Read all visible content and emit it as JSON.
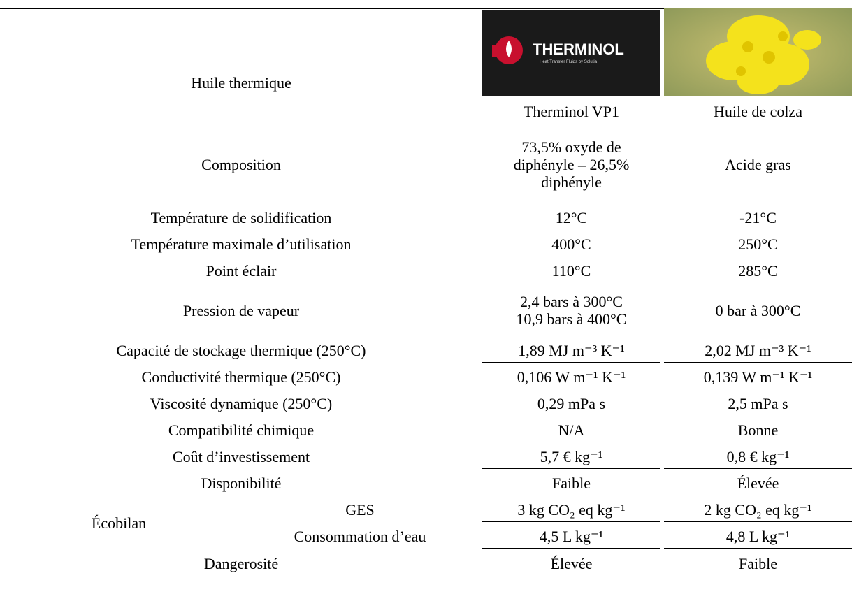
{
  "header": {
    "label": "Huile thermique",
    "logo": "THERMINOL",
    "logo_tagline": "Heat Transfer Fluids by Solutia",
    "columns": [
      "Therminol VP1",
      "Huile de colza"
    ]
  },
  "rows": [
    {
      "label": "Composition",
      "values": [
        [
          "73,5% oxyde de",
          "diphényle – 26,5%",
          "diphényle"
        ],
        [
          "Acide gras"
        ]
      ]
    },
    {
      "label": "Température de solidification",
      "values": [
        [
          "12°C"
        ],
        [
          "-21°C"
        ]
      ]
    },
    {
      "label": "Température maximale d’utilisation",
      "values": [
        [
          "400°C"
        ],
        [
          "250°C"
        ]
      ]
    },
    {
      "label": "Point éclair",
      "values": [
        [
          "110°C"
        ],
        [
          "285°C"
        ]
      ]
    },
    {
      "label": "Pression de vapeur",
      "values": [
        [
          "2,4 bars à 300°C",
          "10,9 bars à 400°C"
        ],
        [
          "0 bar à 300°C"
        ]
      ]
    },
    {
      "label": "Capacité de stockage thermique (250°C)",
      "values": [
        [
          "1,89 MJ m⁻³ K⁻¹"
        ],
        [
          "2,02 MJ m⁻³ K⁻¹"
        ]
      ]
    },
    {
      "label": "Conductivité thermique (250°C)",
      "values": [
        [
          "0,106 W m⁻¹ K⁻¹"
        ],
        [
          "0,139 W m⁻¹ K⁻¹"
        ]
      ]
    },
    {
      "label": "Viscosité dynamique (250°C)",
      "values": [
        [
          "0,29 mPa s"
        ],
        [
          "2,5 mPa s"
        ]
      ]
    },
    {
      "label": "Compatibilité chimique",
      "values": [
        [
          "N/A"
        ],
        [
          "Bonne"
        ]
      ]
    },
    {
      "label": "Coût d’investissement",
      "values": [
        [
          "5,7 € kg⁻¹"
        ],
        [
          "0,8 € kg⁻¹"
        ]
      ]
    },
    {
      "label": "Disponibilité",
      "values": [
        [
          "Faible"
        ],
        [
          "Élevée"
        ]
      ]
    }
  ],
  "ecobilan": {
    "label": "Écobilan",
    "rows": [
      {
        "label": "GES",
        "values": [
          [
            "3 kg CO₂ eq kg⁻¹"
          ],
          [
            "2 kg CO₂ eq kg⁻¹"
          ]
        ]
      },
      {
        "label": "Consommation d’eau",
        "values": [
          [
            "4,5 L kg⁻¹"
          ],
          [
            "4,8 L kg⁻¹"
          ]
        ]
      }
    ]
  },
  "last_row": {
    "label": "Dangerosité",
    "values": [
      [
        "Élevée"
      ],
      [
        "Faible"
      ]
    ]
  }
}
